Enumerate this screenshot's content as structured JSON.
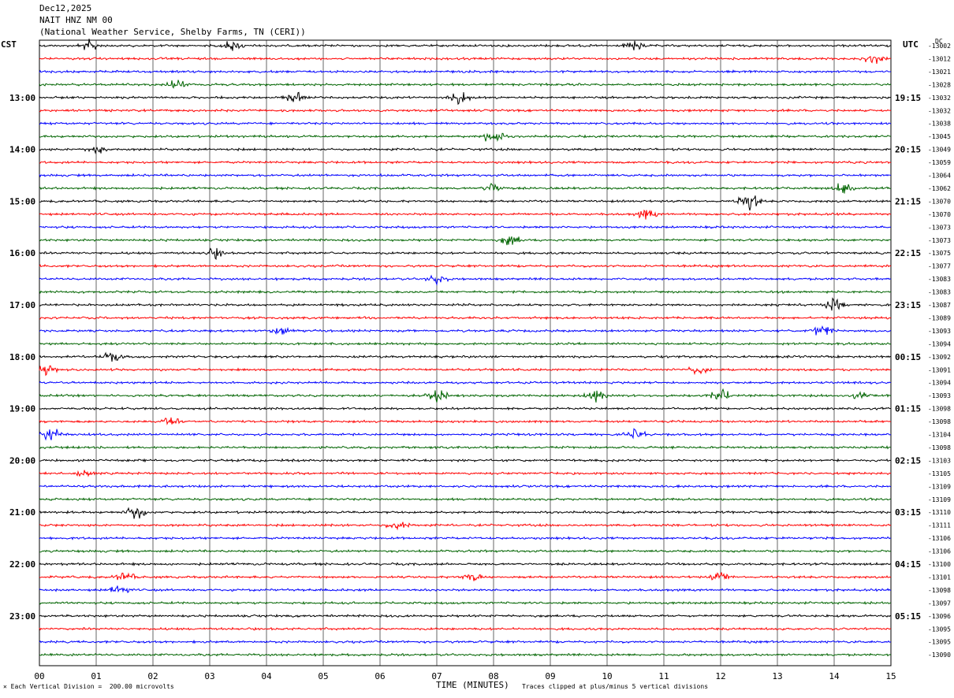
{
  "header": {
    "date": "Dec12,2025",
    "station": "NAIT HNZ NM 00",
    "source": "(National Weather Service, Shelby Farms, TN (CERI))"
  },
  "left_tz": "CST",
  "right_tz": "UTC",
  "corner_mark": "DC",
  "footer": {
    "scale_note": "Each Vertical Division =  200.00 microvolts",
    "xlabel": "TIME (MINUTES)",
    "clip_note": "Traces clipped at plus/minus 5 vertical divisions"
  },
  "colors": {
    "cycle": [
      "#000000",
      "#ff0000",
      "#0000ff",
      "#006400"
    ],
    "grid": "#000000"
  },
  "chart_data": {
    "type": "line",
    "title": "NAIT HNZ NM 00",
    "xlabel": "TIME (MINUTES)",
    "xlim": [
      0,
      15
    ],
    "x_ticks": [
      "00",
      "01",
      "02",
      "03",
      "04",
      "05",
      "06",
      "07",
      "08",
      "09",
      "10",
      "11",
      "12",
      "13",
      "14",
      "15"
    ],
    "left_hour_labels": [
      "13:00",
      "14:00",
      "15:00",
      "16:00",
      "17:00",
      "18:00",
      "19:00",
      "20:00",
      "21:00",
      "22:00",
      "23:00"
    ],
    "right_hour_labels": [
      "19:15",
      "20:15",
      "21:15",
      "22:15",
      "23:15",
      "00:15",
      "01:15",
      "02:15",
      "03:15",
      "04:15",
      "05:15"
    ],
    "rows_per_hour": 4,
    "first_labeled_row": 4,
    "trace_offsets": [
      -13002,
      -13012,
      -13021,
      -13028,
      -13032,
      -13032,
      -13038,
      -13045,
      -13049,
      -13059,
      -13064,
      -13062,
      -13070,
      -13070,
      -13073,
      -13073,
      -13075,
      -13077,
      -13083,
      -13083,
      -13087,
      -13089,
      -13093,
      -13094,
      -13092,
      -13091,
      -13094,
      -13093,
      -13098,
      -13098,
      -13104,
      -13098,
      -13103,
      -13105,
      -13109,
      -13109,
      -13110,
      -13111,
      -13106,
      -13106,
      -13100,
      -13101,
      -13098,
      -13097,
      -13096,
      -13095,
      -13095,
      -13090
    ],
    "series": [
      {
        "name": "trace",
        "events": [
          [
            0,
            0.9,
            0.6
          ],
          [
            0,
            3.4,
            0.5
          ],
          [
            0,
            10.5,
            0.5
          ],
          [
            1,
            14.7,
            0.5
          ],
          [
            3,
            2.4,
            0.5
          ],
          [
            4,
            7.4,
            0.6
          ],
          [
            4,
            4.5,
            0.5
          ],
          [
            7,
            8.0,
            0.8
          ],
          [
            8,
            1.0,
            0.5
          ],
          [
            11,
            8.0,
            0.7
          ],
          [
            11,
            14.2,
            0.7
          ],
          [
            12,
            12.5,
            1.0
          ],
          [
            13,
            10.7,
            0.5
          ],
          [
            15,
            8.3,
            0.6
          ],
          [
            16,
            3.1,
            0.5
          ],
          [
            18,
            7.0,
            0.5
          ],
          [
            20,
            14.0,
            0.6
          ],
          [
            22,
            4.3,
            0.5
          ],
          [
            22,
            13.8,
            0.6
          ],
          [
            24,
            1.3,
            0.6
          ],
          [
            25,
            0.1,
            0.6
          ],
          [
            25,
            11.6,
            0.5
          ],
          [
            27,
            7.0,
            0.6
          ],
          [
            27,
            9.8,
            0.6
          ],
          [
            27,
            12.0,
            0.6
          ],
          [
            27,
            14.5,
            0.5
          ],
          [
            29,
            2.3,
            0.5
          ],
          [
            30,
            0.2,
            0.7
          ],
          [
            30,
            10.5,
            0.5
          ],
          [
            33,
            0.8,
            0.4
          ],
          [
            36,
            1.7,
            0.7
          ],
          [
            37,
            6.3,
            0.5
          ],
          [
            41,
            1.5,
            0.5
          ],
          [
            41,
            7.6,
            0.5
          ],
          [
            41,
            12.0,
            0.5
          ],
          [
            42,
            1.4,
            0.5
          ]
        ]
      }
    ]
  }
}
